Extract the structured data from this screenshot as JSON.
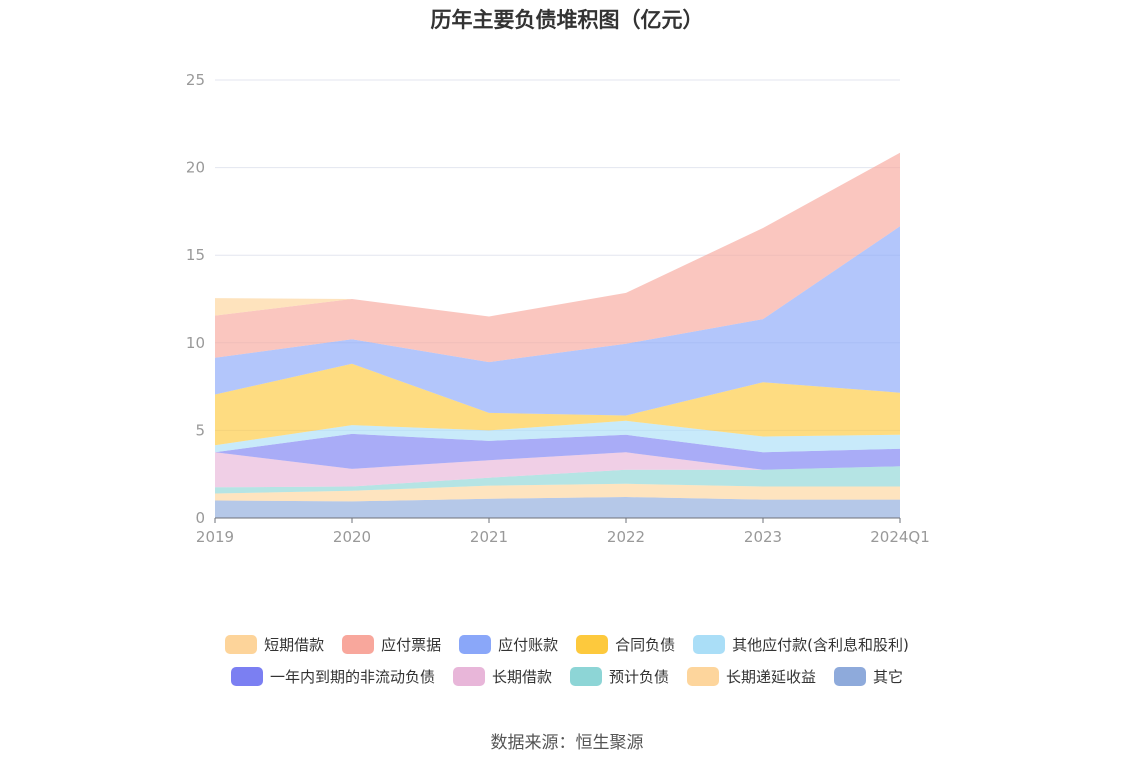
{
  "chart_data": {
    "type": "area",
    "stacked": true,
    "title": "历年主要负债堆积图（亿元）",
    "source": "数据来源：恒生聚源",
    "categories": [
      "2019",
      "2020",
      "2021",
      "2022",
      "2023",
      "2024Q1"
    ],
    "ylim": [
      0,
      25
    ],
    "yticks": [
      "0",
      "5",
      "10",
      "15",
      "20",
      "25"
    ],
    "grid": true,
    "legend_position": "bottom",
    "series": [
      {
        "name": "其它",
        "color": "#8eaadb",
        "values": [
          1.0,
          0.95,
          1.1,
          1.2,
          1.05,
          1.05
        ]
      },
      {
        "name": "长期递延收益",
        "color": "#fdd59c",
        "values": [
          0.4,
          0.6,
          0.75,
          0.75,
          0.75,
          0.75
        ]
      },
      {
        "name": "预计负债",
        "color": "#8dd5d6",
        "values": [
          0.35,
          0.25,
          0.45,
          0.8,
          0.95,
          1.15
        ]
      },
      {
        "name": "长期借款",
        "color": "#e8b6d9",
        "values": [
          2.0,
          1.0,
          1.0,
          1.0,
          0.0,
          0.0
        ]
      },
      {
        "name": "一年内到期的非流动负债",
        "color": "#7b7ff2",
        "values": [
          0.0,
          2.0,
          1.1,
          1.0,
          1.0,
          1.0
        ]
      },
      {
        "name": "其他应付款(含利息和股利)",
        "color": "#aadef7",
        "values": [
          0.4,
          0.5,
          0.6,
          0.8,
          0.9,
          0.8
        ]
      },
      {
        "name": "合同负债",
        "color": "#fdc93d",
        "values": [
          2.9,
          3.5,
          1.0,
          0.3,
          3.1,
          2.4
        ]
      },
      {
        "name": "应付账款",
        "color": "#8aa7f9",
        "values": [
          2.1,
          1.4,
          2.9,
          4.1,
          3.6,
          9.5
        ]
      },
      {
        "name": "应付票据",
        "color": "#f8a79c",
        "values": [
          2.4,
          2.3,
          2.6,
          2.9,
          5.2,
          4.2
        ]
      },
      {
        "name": "短期借款",
        "color": "#fdd49a",
        "values": [
          1.0,
          0.0,
          0.0,
          0.0,
          0.0,
          0.0
        ]
      }
    ]
  },
  "legend_rows": [
    [
      "短期借款",
      "应付票据",
      "应付账款",
      "合同负债",
      "其他应付款(含利息和股利)"
    ],
    [
      "一年内到期的非流动负债",
      "长期借款",
      "预计负债",
      "长期递延收益",
      "其它"
    ]
  ],
  "colors": {
    "grid": "#e3e6ef",
    "axis": "#6e7079",
    "tick_label": "#999999"
  }
}
